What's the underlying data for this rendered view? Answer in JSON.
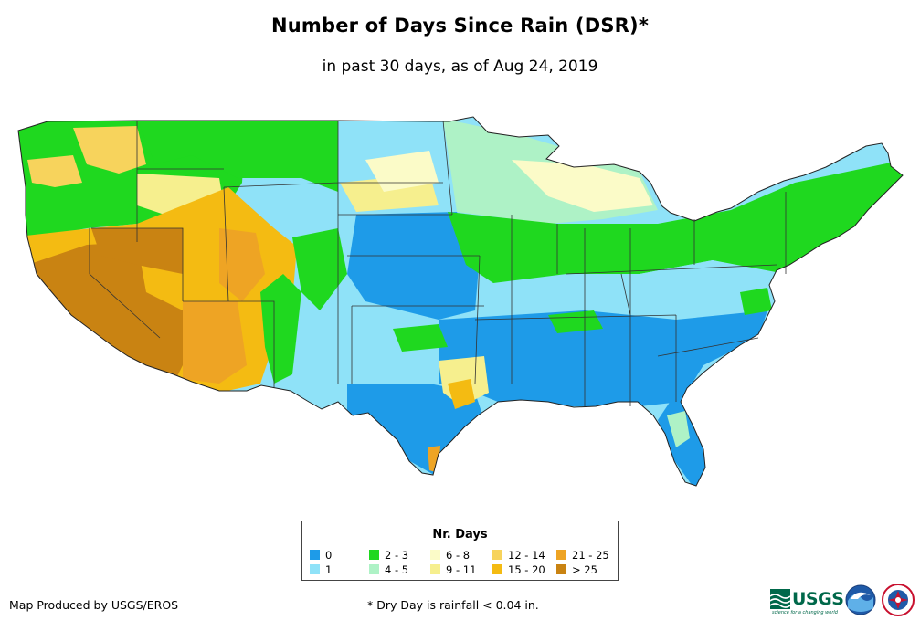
{
  "title": "Number of Days Since Rain (DSR)*",
  "subtitle": "in past 30 days, as of Aug 24, 2019",
  "legend": {
    "title": "Nr. Days",
    "items": [
      {
        "label": "0",
        "color": "#1e9be8"
      },
      {
        "label": "1",
        "color": "#8fe2f8"
      },
      {
        "label": "2 - 3",
        "color": "#1fd81f"
      },
      {
        "label": "4 - 5",
        "color": "#aef2c6"
      },
      {
        "label": "6 - 8",
        "color": "#fbfbc8"
      },
      {
        "label": "9 - 11",
        "color": "#f6ef8e"
      },
      {
        "label": "12 - 14",
        "color": "#f7d35c"
      },
      {
        "label": "15 - 20",
        "color": "#f4bb12"
      },
      {
        "label": "21 - 25",
        "color": "#eea424"
      },
      {
        "label": "> 25",
        "color": "#c98312"
      }
    ]
  },
  "footer": {
    "credit": "Map Produced by USGS/EROS",
    "footnote": "* Dry Day is rainfall < 0.04 in."
  },
  "logos": {
    "usgs": "USGS",
    "usgs_tagline": "science for a changing world",
    "noaa": "noaa-logo-icon",
    "nws": "nws-logo-icon"
  }
}
